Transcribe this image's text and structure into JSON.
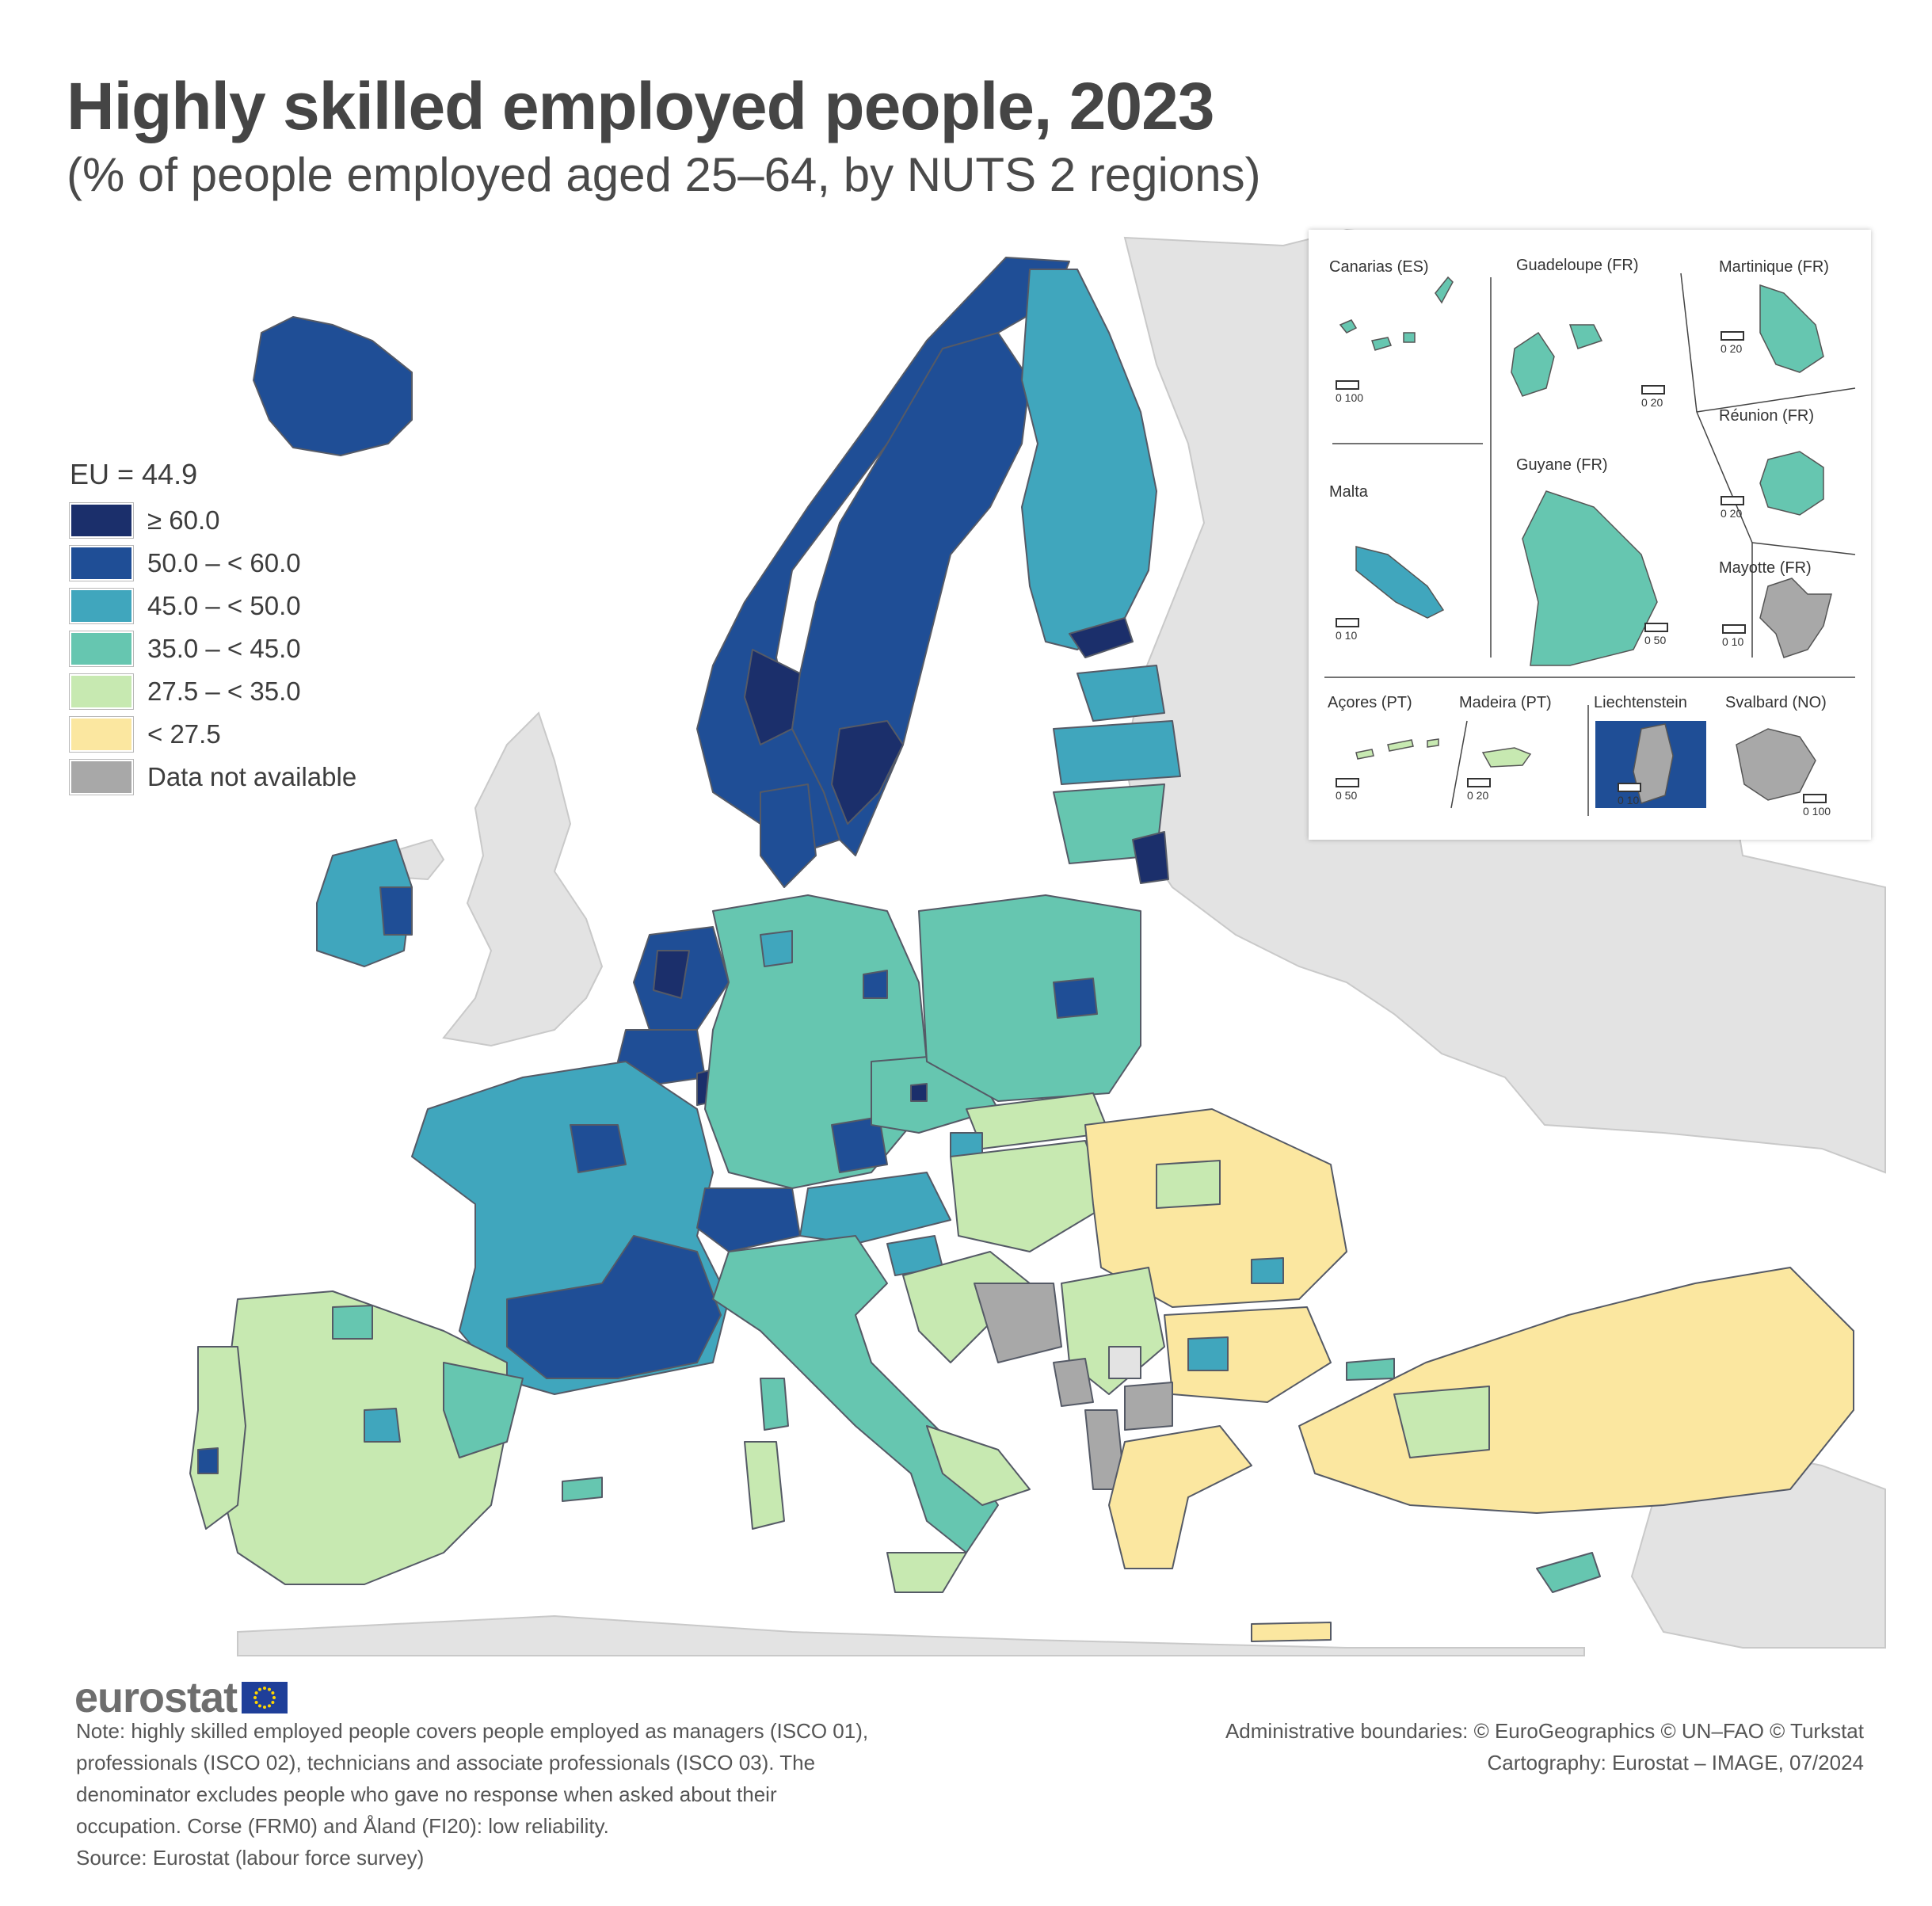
{
  "title": "Highly skilled employed people, 2023",
  "subtitle": "(% of people employed aged 25–64, by NUTS 2 regions)",
  "legend": {
    "header": "EU = 44.9",
    "classes": [
      {
        "label": "≥ 60.0",
        "color": "#1b2f6b"
      },
      {
        "label": "50.0 – < 60.0",
        "color": "#1f4e96"
      },
      {
        "label": "45.0 – < 50.0",
        "color": "#40a6bd"
      },
      {
        "label": "35.0 – < 45.0",
        "color": "#66c6b0"
      },
      {
        "label": "27.5 – < 35.0",
        "color": "#c7e9b1"
      },
      {
        "label": "< 27.5",
        "color": "#fbe7a0"
      },
      {
        "label": "Data not available",
        "color": "#a8a8a8"
      }
    ]
  },
  "colors": {
    "non_covered_land": "#e3e3e3",
    "sea": "#ffffff",
    "border": "#555a66"
  },
  "insets": [
    {
      "name": "Canarias (ES)",
      "scale": "0   100",
      "class": "35.0 – < 45.0"
    },
    {
      "name": "Guadeloupe (FR)",
      "scale": "0   20",
      "class": "35.0 – < 45.0"
    },
    {
      "name": "Martinique (FR)",
      "scale": "0   20",
      "class": "35.0 – < 45.0"
    },
    {
      "name": "Réunion (FR)",
      "scale": "0   20",
      "class": "35.0 – < 45.0"
    },
    {
      "name": "Malta",
      "scale": "0   10",
      "class": "45.0 – < 50.0"
    },
    {
      "name": "Guyane (FR)",
      "scale": "0   50",
      "class": "35.0 – < 45.0"
    },
    {
      "name": "Mayotte (FR)",
      "scale": "0   10",
      "class": "Data not available"
    },
    {
      "name": "Açores (PT)",
      "scale": "0   50",
      "class": "27.5 – < 35.0"
    },
    {
      "name": "Madeira (PT)",
      "scale": "0   20",
      "class": "27.5 – < 35.0"
    },
    {
      "name": "Liechtenstein",
      "scale": "0   10",
      "class": "Data not available"
    },
    {
      "name": "Svalbard (NO)",
      "scale": "0 100",
      "class": "Data not available"
    }
  ],
  "logo": "eurostat",
  "note": [
    "Note: highly skilled employed people covers people employed as managers (ISCO 01),",
    "professionals (ISCO 02), technicians and associate professionals (ISCO 03). The",
    "denominator excludes people who gave no response when asked about their",
    "occupation. Corse (FRM0) and Åland (FI20): low reliability.",
    "Source: Eurostat (labour force survey)"
  ],
  "credits": [
    "Administrative boundaries: © EuroGeographics © UN–FAO © Turkstat",
    "Cartography: Eurostat – IMAGE, 07/2024"
  ]
}
